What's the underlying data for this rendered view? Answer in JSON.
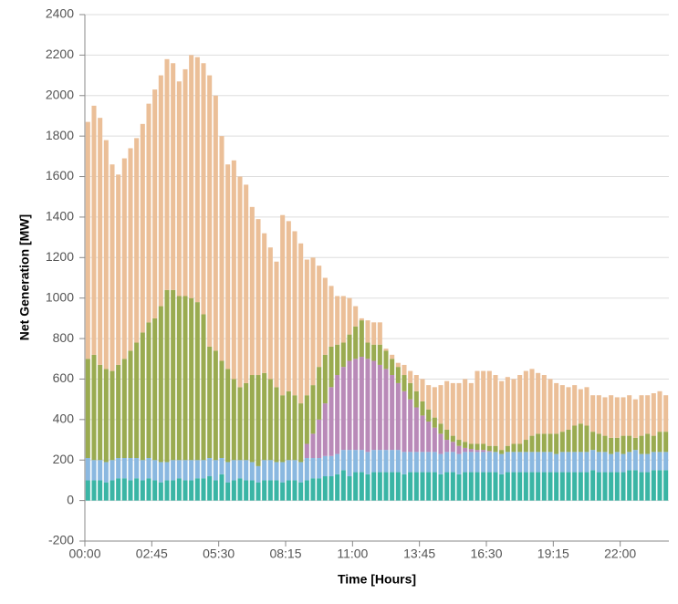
{
  "chart_data": {
    "type": "stacked_bar",
    "xlabel": "Time [Hours]",
    "ylabel": "Net Generation [MW]",
    "categories": [
      "00:00",
      null,
      null,
      null,
      null,
      null,
      null,
      null,
      null,
      null,
      null,
      "02:45",
      null,
      null,
      null,
      null,
      null,
      null,
      null,
      null,
      null,
      null,
      "05:30",
      null,
      null,
      null,
      null,
      null,
      null,
      null,
      null,
      null,
      null,
      "08:15",
      null,
      null,
      null,
      null,
      null,
      null,
      null,
      null,
      null,
      null,
      "11:00",
      null,
      null,
      null,
      null,
      null,
      null,
      null,
      null,
      null,
      null,
      "13:45",
      null,
      null,
      null,
      null,
      null,
      null,
      null,
      null,
      null,
      null,
      "16:30",
      null,
      null,
      null,
      null,
      null,
      null,
      null,
      null,
      null,
      null,
      "19:15",
      null,
      null,
      null,
      null,
      null,
      null,
      null,
      null,
      null,
      null,
      "22:00",
      null,
      null,
      null,
      null,
      null,
      null,
      null
    ],
    "ylim": [
      -200,
      2400
    ],
    "yticks": [
      -200,
      0,
      200,
      400,
      600,
      800,
      1000,
      1200,
      1400,
      1600,
      1800,
      2000,
      2200,
      2400
    ],
    "grid": true,
    "series": [
      {
        "color": "#3ab5a5",
        "values": [
          100,
          100,
          100,
          90,
          100,
          110,
          110,
          100,
          110,
          100,
          110,
          100,
          90,
          100,
          100,
          110,
          100,
          100,
          110,
          110,
          120,
          100,
          130,
          90,
          100,
          110,
          100,
          100,
          90,
          100,
          100,
          100,
          90,
          100,
          100,
          90,
          100,
          110,
          110,
          120,
          120,
          130,
          150,
          120,
          140,
          140,
          130,
          140,
          140,
          140,
          140,
          140,
          130,
          140,
          140,
          140,
          140,
          140,
          130,
          140,
          140,
          130,
          140,
          140,
          140,
          140,
          140,
          140,
          130,
          140,
          140,
          140,
          140,
          140,
          140,
          140,
          140,
          140,
          140,
          140,
          140,
          140,
          140,
          150,
          140,
          140,
          140,
          140,
          140,
          150,
          150,
          140,
          140,
          150,
          150,
          150
        ]
      },
      {
        "color": "#8ab8e0",
        "values": [
          110,
          100,
          100,
          100,
          100,
          100,
          100,
          110,
          100,
          100,
          100,
          100,
          100,
          90,
          100,
          90,
          100,
          100,
          90,
          90,
          90,
          100,
          80,
          100,
          100,
          90,
          100,
          90,
          80,
          100,
          100,
          90,
          100,
          100,
          100,
          100,
          110,
          100,
          100,
          100,
          100,
          100,
          100,
          130,
          110,
          110,
          110,
          110,
          110,
          110,
          110,
          110,
          110,
          100,
          100,
          100,
          100,
          100,
          100,
          100,
          100,
          100,
          100,
          100,
          100,
          100,
          100,
          100,
          100,
          100,
          100,
          100,
          100,
          100,
          100,
          100,
          100,
          90,
          100,
          100,
          100,
          100,
          100,
          100,
          100,
          100,
          90,
          100,
          90,
          90,
          100,
          90,
          90,
          90,
          90,
          90
        ]
      },
      {
        "color": "#b98ab8",
        "values": [
          0,
          0,
          0,
          0,
          0,
          0,
          0,
          0,
          0,
          0,
          0,
          0,
          0,
          0,
          0,
          0,
          0,
          0,
          0,
          0,
          0,
          0,
          0,
          0,
          0,
          0,
          0,
          0,
          0,
          0,
          0,
          0,
          0,
          0,
          0,
          0,
          70,
          120,
          190,
          260,
          340,
          390,
          410,
          440,
          450,
          460,
          460,
          440,
          420,
          400,
          370,
          330,
          300,
          260,
          220,
          180,
          150,
          120,
          100,
          60,
          50,
          40,
          20,
          15,
          10,
          10,
          5,
          0,
          0,
          0,
          0,
          0,
          0,
          0,
          0,
          0,
          0,
          0,
          0,
          0,
          0,
          0,
          0,
          0,
          0,
          0,
          0,
          0,
          0,
          0,
          0,
          0,
          0,
          0,
          0,
          0
        ]
      },
      {
        "color": "#9aab50",
        "values": [
          490,
          520,
          470,
          460,
          440,
          460,
          490,
          530,
          570,
          630,
          670,
          700,
          770,
          850,
          840,
          810,
          810,
          800,
          780,
          720,
          550,
          540,
          480,
          460,
          400,
          360,
          380,
          430,
          450,
          430,
          400,
          370,
          330,
          340,
          320,
          290,
          240,
          240,
          260,
          240,
          200,
          150,
          120,
          130,
          160,
          180,
          80,
          80,
          100,
          90,
          80,
          80,
          80,
          80,
          80,
          70,
          60,
          50,
          50,
          50,
          30,
          30,
          30,
          25,
          30,
          30,
          25,
          30,
          20,
          30,
          40,
          40,
          60,
          80,
          90,
          90,
          90,
          100,
          100,
          110,
          130,
          140,
          130,
          90,
          90,
          80,
          80,
          70,
          90,
          80,
          60,
          90,
          100,
          80,
          100,
          100
        ]
      },
      {
        "color": "#ebbf98",
        "values": [
          1170,
          1230,
          1220,
          1130,
          1020,
          940,
          990,
          1000,
          1010,
          1030,
          1080,
          1130,
          1140,
          1140,
          1120,
          1060,
          1120,
          1200,
          1210,
          1240,
          1340,
          1260,
          1110,
          1010,
          1080,
          1040,
          980,
          830,
          770,
          690,
          650,
          620,
          890,
          840,
          810,
          790,
          670,
          630,
          500,
          380,
          300,
          240,
          230,
          180,
          100,
          10,
          110,
          110,
          110,
          10,
          20,
          20,
          50,
          60,
          80,
          110,
          120,
          150,
          190,
          240,
          260,
          280,
          310,
          300,
          360,
          360,
          370,
          350,
          340,
          340,
          320,
          340,
          340,
          330,
          300,
          290,
          270,
          250,
          230,
          210,
          200,
          170,
          190,
          180,
          190,
          190,
          210,
          200,
          190,
          200,
          190,
          200,
          190,
          210,
          200,
          180
        ]
      }
    ]
  }
}
